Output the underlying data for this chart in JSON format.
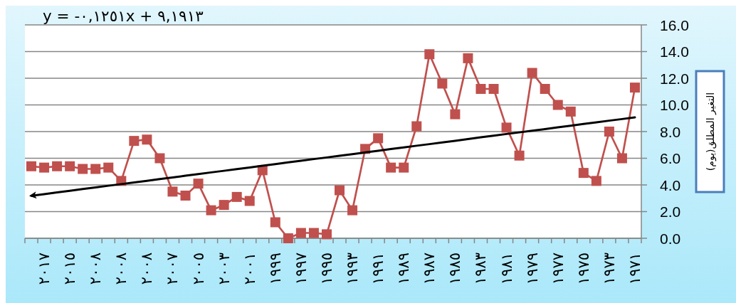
{
  "chart_data": {
    "type": "line",
    "annotations": [
      "y = -٠,١٢٥١x + ٩,١٩١٣"
    ],
    "ylabel": "التغير المطلق(يوم)",
    "categories": [
      null,
      "٢٠١٧",
      null,
      "٢٠١٥",
      null,
      "٢٠٠٨",
      null,
      "٢٠٠٨",
      null,
      "٢٠٠٨",
      null,
      "٢٠٠٧",
      null,
      "٢٠٠٥",
      null,
      "٢٠٠٣",
      null,
      "٢٠٠١",
      null,
      "١٩٩٩",
      null,
      "١٩٩٧",
      null,
      "١٩٩٥",
      null,
      "١٩٩٣",
      null,
      "١٩٩١",
      null,
      "١٩٨٩",
      null,
      "١٩٨٧",
      null,
      "١٩٨٥",
      null,
      "١٩٨٣",
      null,
      "١٩٨١",
      null,
      "١٩٧٩",
      null,
      "١٩٧٧",
      null,
      "١٩٧٥",
      null,
      "١٩٧٣",
      null,
      "١٩٧١"
    ],
    "series": [
      {
        "color": "#c0504d",
        "marker": "square",
        "values": [
          5.4,
          5.3,
          5.4,
          5.4,
          5.2,
          5.2,
          5.3,
          4.3,
          7.3,
          7.4,
          6.0,
          3.5,
          3.2,
          4.1,
          2.1,
          2.5,
          3.1,
          2.8,
          5.1,
          1.2,
          0.0,
          0.4,
          0.4,
          0.3,
          3.6,
          2.1,
          6.7,
          7.5,
          5.3,
          5.3,
          8.4,
          13.8,
          11.6,
          9.3,
          13.5,
          11.2,
          11.2,
          8.3,
          6.2,
          12.4,
          11.2,
          10.0,
          9.5,
          4.9,
          4.3,
          8.0,
          6.0,
          11.3
        ]
      },
      {
        "type": "line",
        "color": "#000000",
        "marker": "none",
        "values": [
          3.19,
          3.31,
          3.44,
          3.56,
          3.69,
          3.81,
          3.94,
          4.06,
          4.19,
          4.31,
          4.44,
          4.56,
          4.69,
          4.81,
          4.94,
          5.06,
          5.19,
          5.31,
          5.44,
          5.56,
          5.69,
          5.81,
          5.94,
          6.06,
          6.19,
          6.31,
          6.44,
          6.56,
          6.69,
          6.81,
          6.94,
          7.06,
          7.19,
          7.31,
          7.44,
          7.57,
          7.69,
          7.82,
          7.94,
          8.07,
          8.19,
          8.32,
          8.44,
          8.57,
          8.69,
          8.82,
          8.94,
          9.07
        ]
      }
    ],
    "ylim": [
      0,
      16
    ],
    "yticks": [
      {
        "value": 0,
        "label": "0.0"
      },
      {
        "value": 2,
        "label": "2.0"
      },
      {
        "value": 4,
        "label": "4.0"
      },
      {
        "value": 6,
        "label": "6.0"
      },
      {
        "value": 8,
        "label": "8.0"
      },
      {
        "value": 10,
        "label": "10.0"
      },
      {
        "value": 12,
        "label": "12.0"
      },
      {
        "value": 14,
        "label": "14.0"
      },
      {
        "value": 16,
        "label": "16.0"
      }
    ],
    "grid": "y",
    "line_style": "solid"
  }
}
